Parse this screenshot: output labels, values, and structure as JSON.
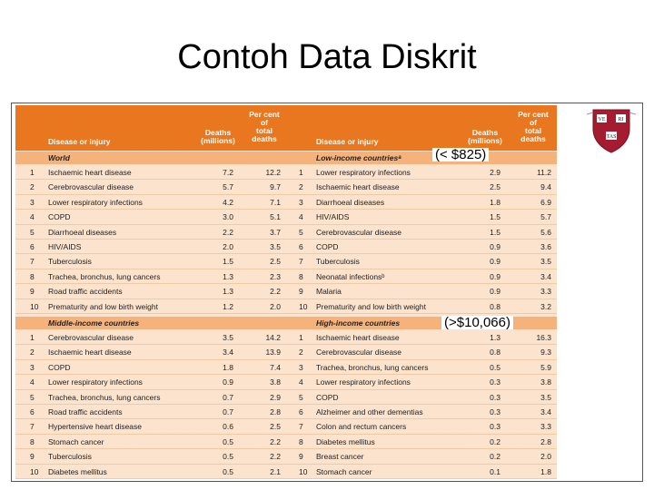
{
  "slide_title": "Contoh Data Diskrit",
  "header": {
    "disease": "Disease or injury",
    "deaths": [
      "Deaths",
      "(millions)"
    ],
    "percent": [
      "Per cent",
      "of",
      "total",
      "deaths"
    ]
  },
  "bands": {
    "world": "World",
    "low": "Low-income countriesᵃ",
    "middle": "Middle-income countries",
    "high": "High-income countries"
  },
  "highlights": {
    "low": "(< $825)",
    "high": "(>$10,066)"
  },
  "world": [
    {
      "rank": "1",
      "name": "Ischaemic heart disease",
      "deaths": "7.2",
      "pct": "12.2"
    },
    {
      "rank": "2",
      "name": "Cerebrovascular disease",
      "deaths": "5.7",
      "pct": "9.7"
    },
    {
      "rank": "3",
      "name": "Lower respiratory infections",
      "deaths": "4.2",
      "pct": "7.1"
    },
    {
      "rank": "4",
      "name": "COPD",
      "deaths": "3.0",
      "pct": "5.1"
    },
    {
      "rank": "5",
      "name": "Diarrhoeal diseases",
      "deaths": "2.2",
      "pct": "3.7"
    },
    {
      "rank": "6",
      "name": "HIV/AIDS",
      "deaths": "2.0",
      "pct": "3.5"
    },
    {
      "rank": "7",
      "name": "Tuberculosis",
      "deaths": "1.5",
      "pct": "2.5"
    },
    {
      "rank": "8",
      "name": "Trachea, bronchus, lung cancers",
      "deaths": "1.3",
      "pct": "2.3"
    },
    {
      "rank": "9",
      "name": "Road traffic accidents",
      "deaths": "1.3",
      "pct": "2.2"
    },
    {
      "rank": "10",
      "name": "Prematurity and low birth weight",
      "deaths": "1.2",
      "pct": "2.0"
    }
  ],
  "low": [
    {
      "rank": "1",
      "name": "Lower respiratory infections",
      "deaths": "2.9",
      "pct": "11.2"
    },
    {
      "rank": "2",
      "name": "Ischaemic heart disease",
      "deaths": "2.5",
      "pct": "9.4"
    },
    {
      "rank": "3",
      "name": "Diarrhoeal diseases",
      "deaths": "1.8",
      "pct": "6.9"
    },
    {
      "rank": "4",
      "name": "HIV/AIDS",
      "deaths": "1.5",
      "pct": "5.7"
    },
    {
      "rank": "5",
      "name": "Cerebrovascular disease",
      "deaths": "1.5",
      "pct": "5.6"
    },
    {
      "rank": "6",
      "name": "COPD",
      "deaths": "0.9",
      "pct": "3.6"
    },
    {
      "rank": "7",
      "name": "Tuberculosis",
      "deaths": "0.9",
      "pct": "3.5"
    },
    {
      "rank": "8",
      "name": "Neonatal infectionsᵇ",
      "deaths": "0.9",
      "pct": "3.4"
    },
    {
      "rank": "9",
      "name": "Malaria",
      "deaths": "0.9",
      "pct": "3.3"
    },
    {
      "rank": "10",
      "name": "Prematurity and low birth weight",
      "deaths": "0.8",
      "pct": "3.2"
    }
  ],
  "middle": [
    {
      "rank": "1",
      "name": "Cerebrovascular disease",
      "deaths": "3.5",
      "pct": "14.2"
    },
    {
      "rank": "2",
      "name": "Ischaemic heart disease",
      "deaths": "3.4",
      "pct": "13.9"
    },
    {
      "rank": "3",
      "name": "COPD",
      "deaths": "1.8",
      "pct": "7.4"
    },
    {
      "rank": "4",
      "name": "Lower respiratory infections",
      "deaths": "0.9",
      "pct": "3.8"
    },
    {
      "rank": "5",
      "name": "Trachea, bronchus, lung cancers",
      "deaths": "0.7",
      "pct": "2.9"
    },
    {
      "rank": "6",
      "name": "Road traffic accidents",
      "deaths": "0.7",
      "pct": "2.8"
    },
    {
      "rank": "7",
      "name": "Hypertensive heart disease",
      "deaths": "0.6",
      "pct": "2.5"
    },
    {
      "rank": "8",
      "name": "Stomach cancer",
      "deaths": "0.5",
      "pct": "2.2"
    },
    {
      "rank": "9",
      "name": "Tuberculosis",
      "deaths": "0.5",
      "pct": "2.2"
    },
    {
      "rank": "10",
      "name": "Diabetes mellitus",
      "deaths": "0.5",
      "pct": "2.1"
    }
  ],
  "high": [
    {
      "rank": "1",
      "name": "Ischaemic heart disease",
      "deaths": "1.3",
      "pct": "16.3"
    },
    {
      "rank": "2",
      "name": "Cerebrovascular disease",
      "deaths": "0.8",
      "pct": "9.3"
    },
    {
      "rank": "3",
      "name": "Trachea, bronchus, lung cancers",
      "deaths": "0.5",
      "pct": "5.9"
    },
    {
      "rank": "4",
      "name": "Lower respiratory infections",
      "deaths": "0.3",
      "pct": "3.8"
    },
    {
      "rank": "5",
      "name": "COPD",
      "deaths": "0.3",
      "pct": "3.5"
    },
    {
      "rank": "6",
      "name": "Alzheimer and other dementias",
      "deaths": "0.3",
      "pct": "3.4"
    },
    {
      "rank": "7",
      "name": "Colon and rectum cancers",
      "deaths": "0.3",
      "pct": "3.3"
    },
    {
      "rank": "8",
      "name": "Diabetes mellitus",
      "deaths": "0.2",
      "pct": "2.8"
    },
    {
      "rank": "9",
      "name": "Breast cancer",
      "deaths": "0.2",
      "pct": "2.0"
    },
    {
      "rank": "10",
      "name": "Stomach cancer",
      "deaths": "0.1",
      "pct": "1.8"
    }
  ],
  "logo": {
    "text": [
      "VE",
      "RI",
      "TAS"
    ],
    "color": "#a51c30"
  }
}
